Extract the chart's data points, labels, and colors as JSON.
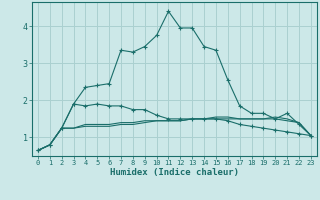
{
  "xlabel": "Humidex (Indice chaleur)",
  "background_color": "#cce8e8",
  "grid_color": "#aad0d0",
  "line_color": "#1a6e6a",
  "x_values": [
    0,
    1,
    2,
    3,
    4,
    5,
    6,
    7,
    8,
    9,
    10,
    11,
    12,
    13,
    14,
    15,
    16,
    17,
    18,
    19,
    20,
    21,
    22,
    23
  ],
  "series": [
    [
      0.65,
      0.8,
      1.25,
      1.9,
      2.35,
      2.4,
      2.45,
      3.35,
      3.3,
      3.45,
      3.75,
      4.4,
      3.95,
      3.95,
      3.45,
      3.35,
      2.55,
      1.85,
      1.65,
      1.65,
      1.5,
      1.65,
      1.35,
      1.05
    ],
    [
      0.65,
      0.8,
      1.25,
      1.9,
      1.85,
      1.9,
      1.85,
      1.85,
      1.75,
      1.75,
      1.6,
      1.5,
      1.5,
      1.5,
      1.5,
      1.5,
      1.45,
      1.35,
      1.3,
      1.25,
      1.2,
      1.15,
      1.1,
      1.05
    ],
    [
      0.65,
      0.8,
      1.25,
      1.25,
      1.35,
      1.35,
      1.35,
      1.4,
      1.4,
      1.45,
      1.45,
      1.45,
      1.45,
      1.5,
      1.5,
      1.5,
      1.5,
      1.5,
      1.5,
      1.5,
      1.5,
      1.45,
      1.4,
      1.05
    ],
    [
      0.65,
      0.8,
      1.25,
      1.25,
      1.3,
      1.3,
      1.3,
      1.35,
      1.35,
      1.4,
      1.45,
      1.45,
      1.45,
      1.5,
      1.5,
      1.55,
      1.55,
      1.5,
      1.5,
      1.5,
      1.55,
      1.5,
      1.4,
      1.05
    ]
  ],
  "markers": [
    true,
    true,
    false,
    false
  ],
  "ylim": [
    0.5,
    4.65
  ],
  "yticks": [
    1,
    2,
    3,
    4
  ],
  "xticks": [
    0,
    1,
    2,
    3,
    4,
    5,
    6,
    7,
    8,
    9,
    10,
    11,
    12,
    13,
    14,
    15,
    16,
    17,
    18,
    19,
    20,
    21,
    22,
    23
  ]
}
